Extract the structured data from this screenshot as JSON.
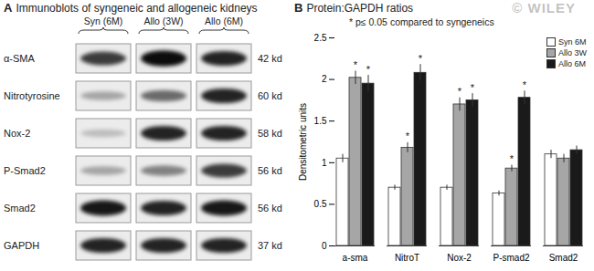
{
  "chart_data": {
    "type": "bar",
    "title": "B",
    "subtitle": "Protein:GAPDH ratios",
    "annotation": "* p≤ 0.05 compared to syngeneics",
    "watermark": "© WILEY",
    "y_label": "Densitometric units",
    "categories": [
      "a-sma",
      "NitroT",
      "Nox-2",
      "P-smad2",
      "Smad2"
    ],
    "series": [
      {
        "name": "Syn 6M",
        "color": "#ffffff",
        "values": [
          1.05,
          0.7,
          0.7,
          0.63,
          1.1
        ],
        "errors": [
          0.05,
          0.03,
          0.03,
          0.03,
          0.05
        ],
        "significance": [
          null,
          null,
          null,
          null,
          null
        ]
      },
      {
        "name": "Allo 3W",
        "color": "#a6a6a6",
        "values": [
          2.02,
          1.18,
          1.7,
          0.93,
          1.05
        ],
        "errors": [
          0.08,
          0.06,
          0.08,
          0.04,
          0.05
        ],
        "significance": [
          "*",
          "*",
          "*",
          "*",
          null
        ]
      },
      {
        "name": "Allo 6M",
        "color": "#1a1a1a",
        "values": [
          1.95,
          2.08,
          1.75,
          1.78,
          1.15
        ],
        "errors": [
          0.1,
          0.1,
          0.08,
          0.08,
          0.05
        ],
        "significance": [
          "*",
          "*",
          "*",
          "*",
          null
        ]
      }
    ],
    "ylim": [
      0,
      2.5
    ],
    "yticks": [
      0,
      0.5,
      1,
      1.5,
      2,
      2.5
    ],
    "legend": "top-right",
    "grid": false
  },
  "blot_panel": {
    "title": "A",
    "subtitle": "Immunoblots of syngeneic and allogeneic kidneys",
    "columns": [
      "Syn (6M)",
      "Allo (3W)",
      "Allo (6M)"
    ],
    "rows": [
      {
        "label": "α-SMA",
        "size": "42 kd",
        "intensity": [
          0.75,
          0.95,
          0.85
        ]
      },
      {
        "label": "Nitrotyrosine",
        "size": "60 kd",
        "intensity": [
          0.3,
          0.55,
          0.85
        ]
      },
      {
        "label": "Nox-2",
        "size": "58 kd",
        "intensity": [
          0.2,
          0.85,
          0.85
        ]
      },
      {
        "label": "P-Smad2",
        "size": "56 kd",
        "intensity": [
          0.3,
          0.45,
          0.75
        ]
      },
      {
        "label": "Smad2",
        "size": "56 kd",
        "intensity": [
          0.9,
          0.85,
          0.9
        ]
      },
      {
        "label": "GAPDH",
        "size": "37 kd",
        "intensity": [
          0.85,
          0.85,
          0.85
        ]
      }
    ]
  }
}
